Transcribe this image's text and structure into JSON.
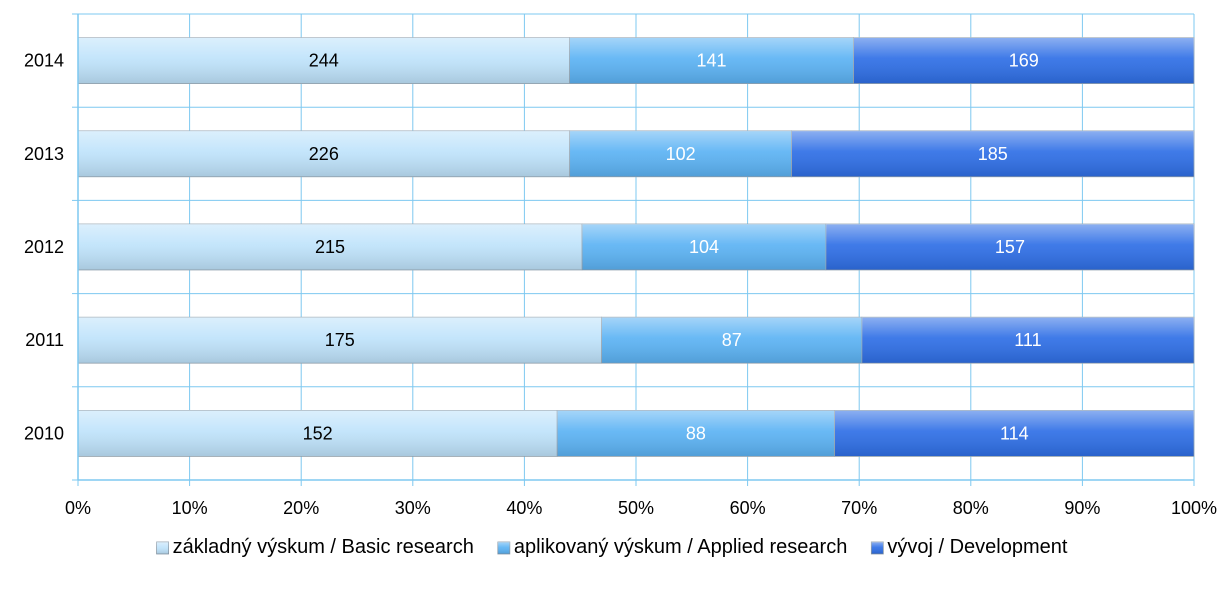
{
  "chart_data": {
    "type": "bar",
    "orientation": "horizontal",
    "stacking": "percent",
    "categories": [
      "2010",
      "2011",
      "2012",
      "2013",
      "2014"
    ],
    "series": [
      {
        "name": "základný výskum / Basic research",
        "values": [
          152,
          175,
          215,
          226,
          244
        ],
        "color": "#bfe3fb",
        "label_color": "#000000"
      },
      {
        "name": "aplikovaný výskum / Applied research",
        "values": [
          88,
          87,
          104,
          102,
          141
        ],
        "color": "#5cb3f4",
        "label_color": "#ffffff"
      },
      {
        "name": "vývoj / Development",
        "values": [
          114,
          111,
          157,
          185,
          169
        ],
        "color": "#2f6fe6",
        "label_color": "#ffffff"
      }
    ],
    "x_ticks": [
      "0%",
      "10%",
      "20%",
      "30%",
      "40%",
      "50%",
      "60%",
      "70%",
      "80%",
      "90%",
      "100%"
    ],
    "xlim": [
      0,
      100
    ],
    "title": "",
    "xlabel": "",
    "ylabel": "",
    "grid": true,
    "grid_color": "#7ec8f0",
    "legend_position": "bottom"
  }
}
